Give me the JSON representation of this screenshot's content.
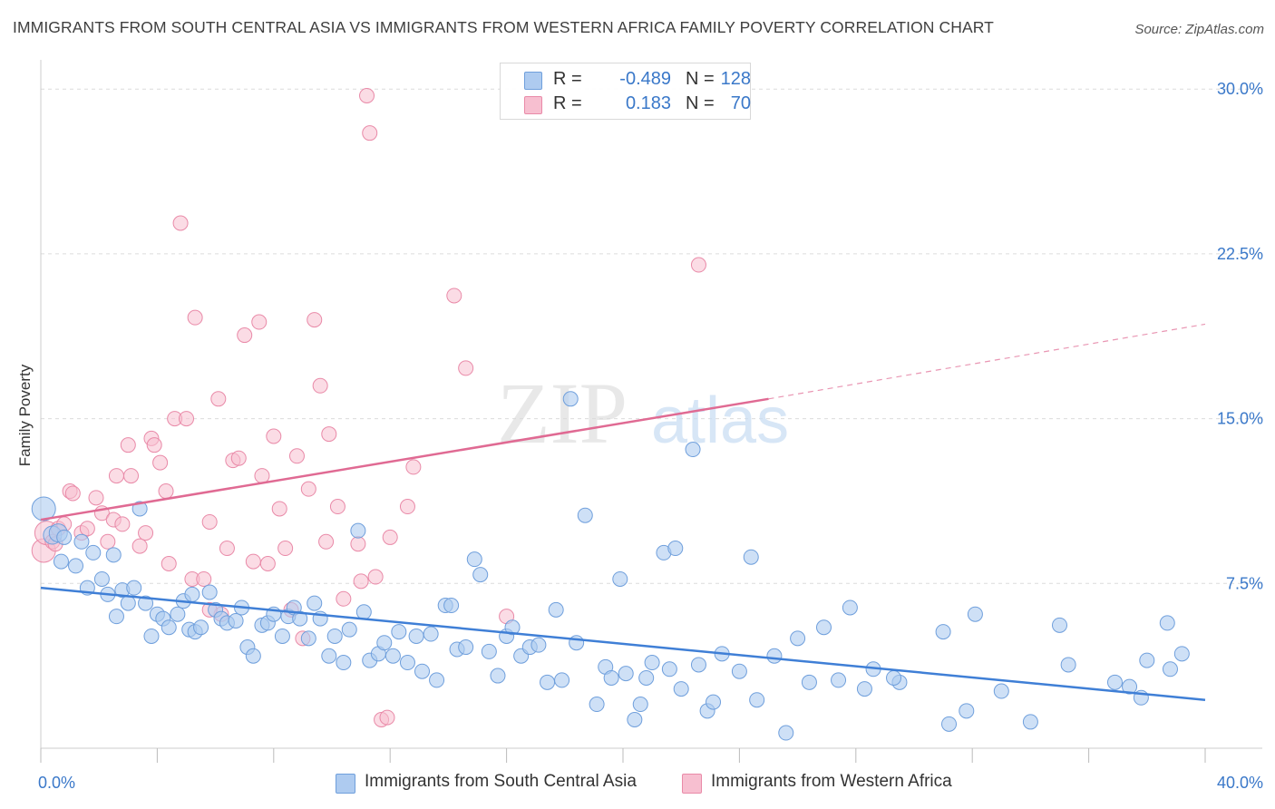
{
  "header": {
    "title": "IMMIGRANTS FROM SOUTH CENTRAL ASIA VS IMMIGRANTS FROM WESTERN AFRICA FAMILY POVERTY CORRELATION CHART",
    "source": "Source: ZipAtlas.com"
  },
  "legend": {
    "r_label": "R =",
    "n_label": "N =",
    "series_a": {
      "r": "-0.489",
      "n": "128"
    },
    "series_b": {
      "r": "0.183",
      "n": "70"
    }
  },
  "bottom_legend": {
    "series_a": "Immigrants from South Central Asia",
    "series_b": "Immigrants from Western Africa"
  },
  "colors": {
    "series_a_fill": "#aecbf0",
    "series_a_stroke": "#6f9fdc",
    "series_a_line": "#3f7fd6",
    "series_b_fill": "#f7bfd0",
    "series_b_stroke": "#e98aa8",
    "series_b_line": "#e06a93",
    "grid": "#dcdcdc",
    "tick_text": "#3a78c9"
  },
  "watermark": {
    "zip": "ZIP",
    "atlas": "atlas"
  },
  "chart_data": {
    "type": "scatter",
    "title": "IMMIGRANTS FROM SOUTH CENTRAL ASIA VS IMMIGRANTS FROM WESTERN AFRICA FAMILY POVERTY CORRELATION CHART",
    "xlabel": "",
    "ylabel": "Family Poverty",
    "xlim": [
      0,
      40
    ],
    "ylim": [
      0,
      31
    ],
    "x_tick_labels": [
      "0.0%",
      "40.0%"
    ],
    "y_ticks": [
      7.5,
      15.0,
      22.5,
      30.0
    ],
    "y_tick_labels": [
      "7.5%",
      "15.0%",
      "22.5%",
      "30.0%"
    ],
    "grid": "horizontal dashed",
    "legend_position": "top-center",
    "series": [
      {
        "name": "Immigrants from South Central Asia",
        "R": -0.489,
        "N": 128,
        "trend": {
          "x": [
            0,
            40
          ],
          "y": [
            7.3,
            2.2
          ],
          "style": "solid"
        },
        "points": [
          [
            0.1,
            10.9
          ],
          [
            0.4,
            9.7
          ],
          [
            0.6,
            9.8
          ],
          [
            0.8,
            9.6
          ],
          [
            1.2,
            8.3
          ],
          [
            1.4,
            9.4
          ],
          [
            1.6,
            7.3
          ],
          [
            1.8,
            8.9
          ],
          [
            2.1,
            7.7
          ],
          [
            2.3,
            7.0
          ],
          [
            2.5,
            8.8
          ],
          [
            2.8,
            7.2
          ],
          [
            3.0,
            6.6
          ],
          [
            3.2,
            7.3
          ],
          [
            3.4,
            10.9
          ],
          [
            3.6,
            6.6
          ],
          [
            3.8,
            5.1
          ],
          [
            4.0,
            6.1
          ],
          [
            4.2,
            5.9
          ],
          [
            4.4,
            5.5
          ],
          [
            4.7,
            6.1
          ],
          [
            4.9,
            6.7
          ],
          [
            5.1,
            5.4
          ],
          [
            5.3,
            5.3
          ],
          [
            5.5,
            5.5
          ],
          [
            5.8,
            7.1
          ],
          [
            6.0,
            6.3
          ],
          [
            6.2,
            5.9
          ],
          [
            6.4,
            5.7
          ],
          [
            6.7,
            5.8
          ],
          [
            6.9,
            6.4
          ],
          [
            7.1,
            4.6
          ],
          [
            7.3,
            4.2
          ],
          [
            7.6,
            5.6
          ],
          [
            7.8,
            5.7
          ],
          [
            8.0,
            6.1
          ],
          [
            8.3,
            5.1
          ],
          [
            8.5,
            6.0
          ],
          [
            8.7,
            6.4
          ],
          [
            8.9,
            5.9
          ],
          [
            9.2,
            5.0
          ],
          [
            9.4,
            6.6
          ],
          [
            9.6,
            5.9
          ],
          [
            9.9,
            4.2
          ],
          [
            10.1,
            5.1
          ],
          [
            10.4,
            3.9
          ],
          [
            10.6,
            5.4
          ],
          [
            10.9,
            9.9
          ],
          [
            11.1,
            6.2
          ],
          [
            11.3,
            4.0
          ],
          [
            11.6,
            4.3
          ],
          [
            11.8,
            4.8
          ],
          [
            12.1,
            4.2
          ],
          [
            12.3,
            5.3
          ],
          [
            12.6,
            3.9
          ],
          [
            12.9,
            5.1
          ],
          [
            13.1,
            3.5
          ],
          [
            13.4,
            5.2
          ],
          [
            13.6,
            3.1
          ],
          [
            13.9,
            6.5
          ],
          [
            14.1,
            6.5
          ],
          [
            14.3,
            4.5
          ],
          [
            14.6,
            4.6
          ],
          [
            14.9,
            8.6
          ],
          [
            15.1,
            7.9
          ],
          [
            15.4,
            4.4
          ],
          [
            15.7,
            3.3
          ],
          [
            16.0,
            5.1
          ],
          [
            16.2,
            5.5
          ],
          [
            16.5,
            4.2
          ],
          [
            16.8,
            4.6
          ],
          [
            17.1,
            4.7
          ],
          [
            17.4,
            3.0
          ],
          [
            17.7,
            6.3
          ],
          [
            17.9,
            3.1
          ],
          [
            18.2,
            15.9
          ],
          [
            18.4,
            4.8
          ],
          [
            18.7,
            10.6
          ],
          [
            19.1,
            2.0
          ],
          [
            19.4,
            3.7
          ],
          [
            19.6,
            3.2
          ],
          [
            19.9,
            7.7
          ],
          [
            20.1,
            3.4
          ],
          [
            20.4,
            1.3
          ],
          [
            20.6,
            2.0
          ],
          [
            20.8,
            3.2
          ],
          [
            21.0,
            3.9
          ],
          [
            21.4,
            8.9
          ],
          [
            21.6,
            3.6
          ],
          [
            21.8,
            9.1
          ],
          [
            22.0,
            2.7
          ],
          [
            22.4,
            13.6
          ],
          [
            22.6,
            3.8
          ],
          [
            22.9,
            1.7
          ],
          [
            23.1,
            2.1
          ],
          [
            23.4,
            4.3
          ],
          [
            24.0,
            3.5
          ],
          [
            24.4,
            8.7
          ],
          [
            24.6,
            2.2
          ],
          [
            25.2,
            4.2
          ],
          [
            25.6,
            0.7
          ],
          [
            26.0,
            5.0
          ],
          [
            26.4,
            3.0
          ],
          [
            26.9,
            5.5
          ],
          [
            27.4,
            3.1
          ],
          [
            27.8,
            6.4
          ],
          [
            28.3,
            2.7
          ],
          [
            28.6,
            3.6
          ],
          [
            29.5,
            3.0
          ],
          [
            29.3,
            3.2
          ],
          [
            31.0,
            5.3
          ],
          [
            31.2,
            1.1
          ],
          [
            31.8,
            1.7
          ],
          [
            32.1,
            6.1
          ],
          [
            33.0,
            2.6
          ],
          [
            34.0,
            1.2
          ],
          [
            35.0,
            5.6
          ],
          [
            35.3,
            3.8
          ],
          [
            36.9,
            3.0
          ],
          [
            37.4,
            2.8
          ],
          [
            37.8,
            2.3
          ],
          [
            38.0,
            4.0
          ],
          [
            38.7,
            5.7
          ],
          [
            38.8,
            3.6
          ],
          [
            39.2,
            4.3
          ],
          [
            0.7,
            8.5
          ],
          [
            2.6,
            6.0
          ],
          [
            5.2,
            7.0
          ]
        ]
      },
      {
        "name": "Immigrants from Western Africa",
        "R": 0.183,
        "N": 70,
        "trend": {
          "x": [
            0,
            25
          ],
          "y": [
            10.4,
            15.9
          ],
          "style": "solid",
          "dashed_extension_to": [
            40,
            19.3
          ]
        },
        "points": [
          [
            0.1,
            9.0
          ],
          [
            0.2,
            9.8
          ],
          [
            0.4,
            9.4
          ],
          [
            0.5,
            9.3
          ],
          [
            0.6,
            10.0
          ],
          [
            0.8,
            10.2
          ],
          [
            1.0,
            11.7
          ],
          [
            1.1,
            11.6
          ],
          [
            1.4,
            9.8
          ],
          [
            1.6,
            10.0
          ],
          [
            1.9,
            11.4
          ],
          [
            2.1,
            10.7
          ],
          [
            2.3,
            9.4
          ],
          [
            2.5,
            10.4
          ],
          [
            2.6,
            12.4
          ],
          [
            2.8,
            10.2
          ],
          [
            3.0,
            13.8
          ],
          [
            3.1,
            12.4
          ],
          [
            3.4,
            9.2
          ],
          [
            3.6,
            9.8
          ],
          [
            3.8,
            14.1
          ],
          [
            3.9,
            13.8
          ],
          [
            4.1,
            13.0
          ],
          [
            4.3,
            11.7
          ],
          [
            4.4,
            8.4
          ],
          [
            4.6,
            15.0
          ],
          [
            4.8,
            23.9
          ],
          [
            5.0,
            15.0
          ],
          [
            5.2,
            7.7
          ],
          [
            5.3,
            19.6
          ],
          [
            5.6,
            7.7
          ],
          [
            5.8,
            10.3
          ],
          [
            6.1,
            15.9
          ],
          [
            6.2,
            6.1
          ],
          [
            6.4,
            9.1
          ],
          [
            6.6,
            13.1
          ],
          [
            6.8,
            13.2
          ],
          [
            7.0,
            18.8
          ],
          [
            7.3,
            8.5
          ],
          [
            7.5,
            19.4
          ],
          [
            7.6,
            12.4
          ],
          [
            7.8,
            8.4
          ],
          [
            8.0,
            14.2
          ],
          [
            8.2,
            10.9
          ],
          [
            8.4,
            9.1
          ],
          [
            8.6,
            6.3
          ],
          [
            8.8,
            13.3
          ],
          [
            9.0,
            5.0
          ],
          [
            9.2,
            11.8
          ],
          [
            9.4,
            19.5
          ],
          [
            9.6,
            16.5
          ],
          [
            9.8,
            9.4
          ],
          [
            9.9,
            14.3
          ],
          [
            10.2,
            11.0
          ],
          [
            10.4,
            6.8
          ],
          [
            10.9,
            9.3
          ],
          [
            11.0,
            7.6
          ],
          [
            11.2,
            29.7
          ],
          [
            11.3,
            28.0
          ],
          [
            11.5,
            7.8
          ],
          [
            11.7,
            1.3
          ],
          [
            11.9,
            1.4
          ],
          [
            12.0,
            9.6
          ],
          [
            12.6,
            11.0
          ],
          [
            12.8,
            12.8
          ],
          [
            14.2,
            20.6
          ],
          [
            14.6,
            17.3
          ],
          [
            16.0,
            6.0
          ],
          [
            22.6,
            22.0
          ],
          [
            5.8,
            6.3
          ]
        ]
      }
    ]
  }
}
